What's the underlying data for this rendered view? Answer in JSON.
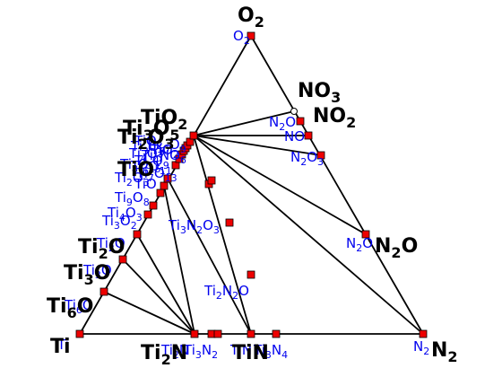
{
  "vertices": {
    "o2": "O$_2$",
    "ti": "Ti",
    "n2": "N$_2$"
  },
  "extra_labels": {
    "no3": "NO$_3$",
    "no2": "NO$_2$",
    "tio2": "TiO$_2$",
    "ti3o5": "Ti$_3$O$_5$",
    "ti2o3": "Ti$_2$O$_3$",
    "tio": "TiO",
    "n2o": "N$_2$O",
    "ti2o": "Ti$_2$O",
    "ti3o": "Ti$_3$O",
    "ti6o": "Ti$_6$O",
    "ti2n": "Ti$_2$N",
    "tin": "TiN"
  },
  "phase_labels": {
    "o2": "O$_2$",
    "n2o_top": "N$_2$O",
    "no": "NO",
    "n2o3": "N$_2$O$_3$",
    "n2o_right": "N$_2$O",
    "n2": "N$_2$",
    "ti9o8": "Ti$_9$O$_8$",
    "ti4o3": "Ti$_4$O$_3$",
    "ti3o2": "Ti$_3$O$_2$",
    "ti2o_small": "Ti$_2$O",
    "ti3o_small": "Ti$_3$O",
    "ti6o_small": "Ti$_6$O",
    "ti_small": "Ti",
    "ti3n2o3": "Ti$_3$N$_2$O$_3$",
    "ti2n2o": "Ti$_2$N$_2$O",
    "ti2n": "Ti$_2$N",
    "ti3n2": "Ti$_3$N$_2$",
    "tin": "TiN",
    "ti3n4": "Ti$_3$N$_4$",
    "cluster": [
      "TiO$_2$",
      "Ti$_3$O$_5$",
      "Ti$_4$O$_7$",
      "Ti$_5$O$_9$",
      "Ti$_6$O$_{11}$",
      "Ti$_7$O$_{13}$",
      "Ti$_8$O$_{15}$",
      "Ti$_2$O$_3$",
      "TiO",
      "Ti$_{10}$O$_9$",
      "Ti$_4$NO$_6$"
    ]
  },
  "colors": {
    "marker": "#ee0000",
    "label": "#0000ee",
    "line": "#000000"
  }
}
